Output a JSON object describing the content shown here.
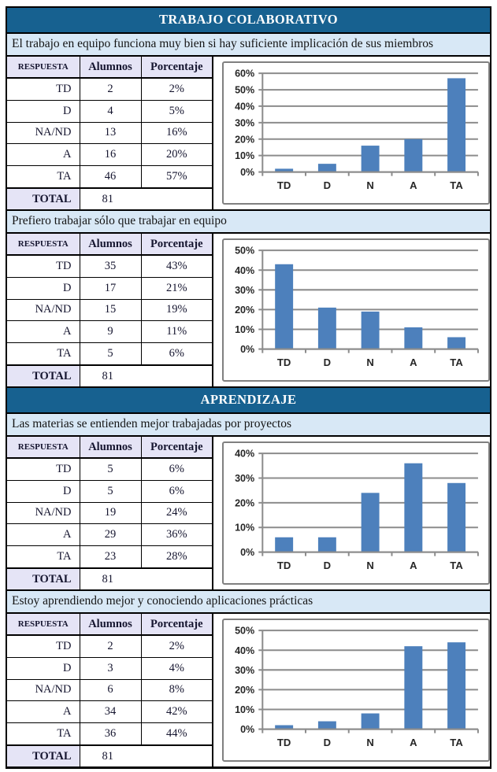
{
  "table_headers": [
    "RESPUESTA",
    "Alumnos",
    "Porcentaje"
  ],
  "total_label": "TOTAL",
  "colors": {
    "banner_bg": "#176190",
    "banner_text": "#FFFFFF",
    "question_bg": "#D8E8F6",
    "header_cell_bg": "#E5E4F6",
    "table_text": "#15152F",
    "border": "#000000",
    "bar_fill": "#4D80BC",
    "chart_grid": "#8C8C8C",
    "chart_frame": "#808080",
    "chart_label": "#262626"
  },
  "sections": [
    {
      "title": "TRABAJO COLABORATIVO",
      "blocks": [
        {
          "question": "El trabajo en equipo funciona muy bien si hay suficiente implicación de sus miembros",
          "rows": [
            [
              "TD",
              "2",
              "2%"
            ],
            [
              "D",
              "4",
              "5%"
            ],
            [
              "NA/ND",
              "13",
              "16%"
            ],
            [
              "A",
              "16",
              "20%"
            ],
            [
              "TA",
              "46",
              "57%"
            ]
          ],
          "total": "81",
          "chart_index": 0
        },
        {
          "question": "Prefiero trabajar sólo que trabajar en equipo",
          "rows": [
            [
              "TD",
              "35",
              "43%"
            ],
            [
              "D",
              "17",
              "21%"
            ],
            [
              "NA/ND",
              "15",
              "19%"
            ],
            [
              "A",
              "9",
              "11%"
            ],
            [
              "TA",
              "5",
              "6%"
            ]
          ],
          "total": "81",
          "chart_index": 1
        }
      ]
    },
    {
      "title": "APRENDIZAJE",
      "blocks": [
        {
          "question": "Las materias se entienden mejor trabajadas por proyectos",
          "rows": [
            [
              "TD",
              "5",
              "6%"
            ],
            [
              "D",
              "5",
              "6%"
            ],
            [
              "NA/ND",
              "19",
              "24%"
            ],
            [
              "A",
              "29",
              "36%"
            ],
            [
              "TA",
              "23",
              "28%"
            ]
          ],
          "total": "81",
          "chart_index": 2
        },
        {
          "question": "Estoy aprendiendo mejor y conociendo aplicaciones prácticas",
          "rows": [
            [
              "TD",
              "2",
              "2%"
            ],
            [
              "D",
              "3",
              "4%"
            ],
            [
              "NA/ND",
              "6",
              "8%"
            ],
            [
              "A",
              "34",
              "42%"
            ],
            [
              "TA",
              "36",
              "44%"
            ]
          ],
          "total": "81",
          "chart_index": 3
        }
      ]
    }
  ],
  "chart_data": [
    {
      "type": "bar",
      "categories": [
        "TD",
        "D",
        "N",
        "A",
        "TA"
      ],
      "values": [
        2,
        5,
        16,
        20,
        57
      ],
      "title": "",
      "xlabel": "",
      "ylabel": "",
      "ylim": [
        0,
        60
      ],
      "ystep": 10,
      "tick_format": "percent",
      "grid": true,
      "legend": "none"
    },
    {
      "type": "bar",
      "categories": [
        "TD",
        "D",
        "N",
        "A",
        "TA"
      ],
      "values": [
        43,
        21,
        19,
        11,
        6
      ],
      "title": "",
      "xlabel": "",
      "ylabel": "",
      "ylim": [
        0,
        50
      ],
      "ystep": 10,
      "tick_format": "percent",
      "grid": true,
      "legend": "none"
    },
    {
      "type": "bar",
      "categories": [
        "TD",
        "D",
        "N",
        "A",
        "TA"
      ],
      "values": [
        6,
        6,
        24,
        36,
        28
      ],
      "title": "",
      "xlabel": "",
      "ylabel": "",
      "ylim": [
        0,
        40
      ],
      "ystep": 10,
      "tick_format": "percent",
      "grid": true,
      "legend": "none"
    },
    {
      "type": "bar",
      "categories": [
        "TD",
        "D",
        "N",
        "A",
        "TA"
      ],
      "values": [
        2,
        4,
        8,
        42,
        44
      ],
      "title": "",
      "xlabel": "",
      "ylabel": "",
      "ylim": [
        0,
        50
      ],
      "ystep": 10,
      "tick_format": "percent",
      "grid": true,
      "legend": "none"
    }
  ]
}
